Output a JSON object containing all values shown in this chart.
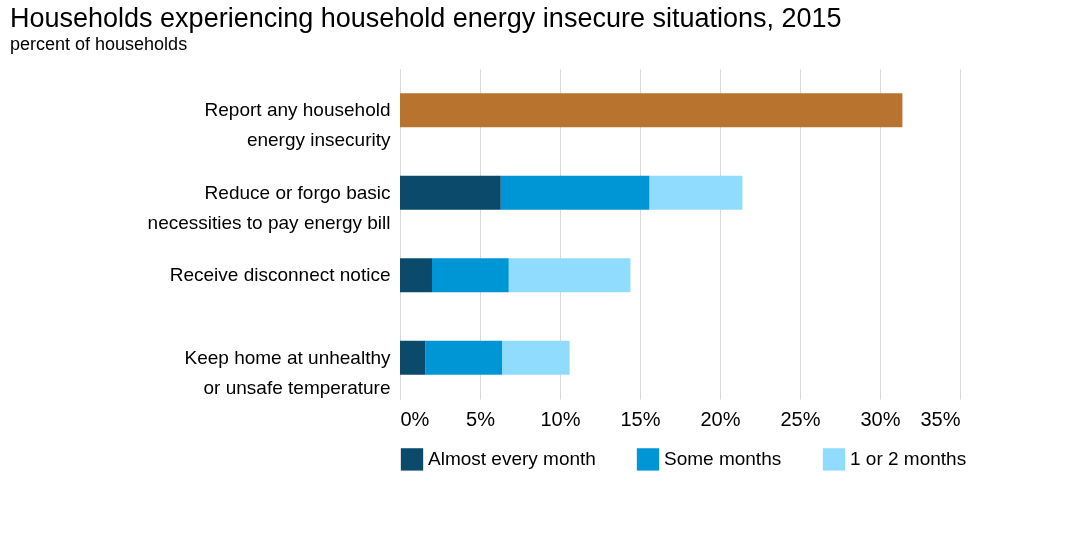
{
  "chart_data": {
    "type": "bar",
    "orientation": "horizontal",
    "stacked": true,
    "title": "Households experiencing household energy insecure situations, 2015",
    "subtitle": "percent of households",
    "categories": [
      "Report any household energy insecurity",
      "Reduce or forgo basic necessities to pay energy bill",
      "Receive disconnect notice",
      "Keep home at unhealthy or unsafe temperature"
    ],
    "series": [
      {
        "color": "#b8732e",
        "values": [
          31.4,
          null,
          null,
          null
        ]
      },
      {
        "name": "Almost every month",
        "color": "#0b4a6b",
        "values": [
          null,
          6.3,
          2.0,
          1.6
        ]
      },
      {
        "name": "Some months",
        "color": "#0096d6",
        "values": [
          null,
          9.3,
          4.8,
          4.8
        ]
      },
      {
        "name": "1 or 2 months",
        "color": "#8fdcff",
        "values": [
          null,
          5.8,
          7.6,
          4.2
        ]
      }
    ],
    "xlim": [
      0,
      35
    ],
    "xticks": [
      {
        "value": 0,
        "label": "0%"
      },
      {
        "value": 5,
        "label": "5%"
      },
      {
        "value": 10,
        "label": "10%"
      },
      {
        "value": 15,
        "label": "15%"
      },
      {
        "value": 20,
        "label": "20%"
      },
      {
        "value": 25,
        "label": "25%"
      },
      {
        "value": 30,
        "label": "30%"
      },
      {
        "value": 35,
        "label": "35%"
      }
    ],
    "grid": "x",
    "legend": "bottom"
  }
}
